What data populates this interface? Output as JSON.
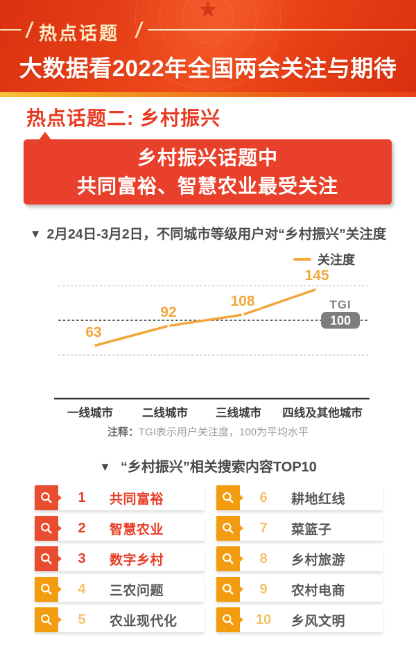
{
  "header": {
    "badge": "热点话题",
    "title": "大数据看2022年全国两会关注与期待"
  },
  "icons": {
    "star": "★",
    "triangle_marker": "▼"
  },
  "section": {
    "title": "热点话题二: 乡村振兴",
    "callout_line1": "乡村振兴话题中",
    "callout_line2": "共同富裕、智慧农业最受关注"
  },
  "chart": {
    "heading": "2月24日-3月2日，不同城市等级用户对“乡村振兴”关注度",
    "legend_label": "关注度",
    "note_prefix": "注释：",
    "note_text": "TGI表示用户关注度，100为平均水平"
  },
  "chart_data": {
    "type": "line",
    "title": "2月24日-3月2日，不同城市等级用户对“乡村振兴”关注度",
    "categories": [
      "一线城市",
      "二线城市",
      "三线城市",
      "四线及其他城市"
    ],
    "series": [
      {
        "name": "关注度",
        "values": [
          63,
          92,
          108,
          145
        ]
      }
    ],
    "baseline": {
      "label": "TGI",
      "value": 100,
      "note": "100为平均水平"
    },
    "gridlines": [
      50,
      100,
      150
    ],
    "ylim": [
      40,
      160
    ],
    "grid": true,
    "legend_position": "top-right",
    "line_color": "#f2a73c"
  },
  "top10": {
    "heading": "“乡村振兴”相关搜索内容TOP10",
    "items": [
      {
        "rank": "1",
        "label": "共同富裕",
        "highlight": true
      },
      {
        "rank": "2",
        "label": "智慧农业",
        "highlight": true
      },
      {
        "rank": "3",
        "label": "数字乡村",
        "highlight": true
      },
      {
        "rank": "4",
        "label": "三农问题",
        "highlight": false
      },
      {
        "rank": "5",
        "label": "农业现代化",
        "highlight": false
      },
      {
        "rank": "6",
        "label": "耕地红线",
        "highlight": false
      },
      {
        "rank": "7",
        "label": "菜篮子",
        "highlight": false
      },
      {
        "rank": "8",
        "label": "乡村旅游",
        "highlight": false
      },
      {
        "rank": "9",
        "label": "农村电商",
        "highlight": false
      },
      {
        "rank": "10",
        "label": "乡风文明",
        "highlight": false
      }
    ]
  },
  "colors": {
    "header_red": "#e84218",
    "accent_red": "#e73e26",
    "square_red": "#e84d30",
    "square_orange": "#f39c0f",
    "rank_orange_light": "#f5c06a",
    "line_orange": "#f2a73c",
    "badge_gray": "#7d7d7d",
    "text_dark": "#4a4a4a",
    "term_gray": "#595757"
  }
}
